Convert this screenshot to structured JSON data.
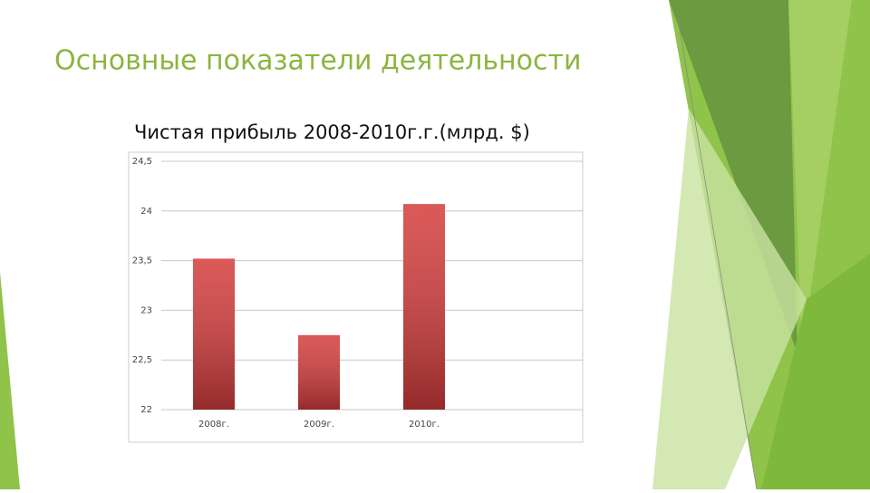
{
  "slide_title": "Основные показатели деятельности",
  "chart_data": {
    "type": "bar",
    "title": "Чистая прибыль 2008-2010г.г.(млрд. $)",
    "categories": [
      "2008г.",
      "2009г.",
      "2010г."
    ],
    "values": [
      23.52,
      22.75,
      24.07
    ],
    "color": "#d43c3c",
    "ylim": [
      22,
      24.5
    ],
    "yticks": [
      22,
      {
        "value": 22.5,
        "label": "22,5"
      },
      23,
      {
        "value": 23.5,
        "label": "23,5"
      },
      24,
      {
        "value": 24.5,
        "label": "24,5"
      }
    ],
    "grid": true
  }
}
